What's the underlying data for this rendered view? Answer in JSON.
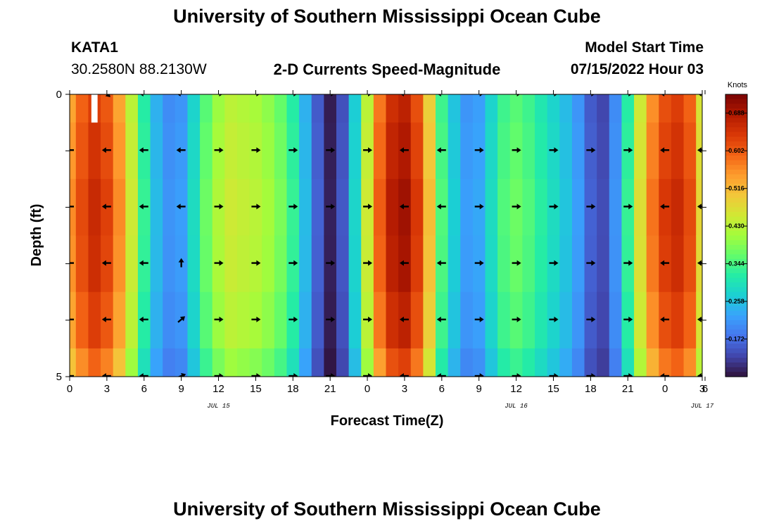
{
  "header": {
    "title": "University of Southern Mississippi Ocean Cube",
    "station": "KATA1",
    "coords": "30.2580N  88.2130W",
    "subtitle": "2-D Currents Speed-Magnitude",
    "model_start_label": "Model Start Time",
    "model_start_value": "07/15/2022 Hour 03"
  },
  "footer": {
    "title": "University of Southern Mississippi Ocean Cube"
  },
  "colors": {
    "colormap": [
      "#30123b",
      "#4145ab",
      "#4675ed",
      "#39a2fc",
      "#1bcfd4",
      "#24eca6",
      "#61fc6c",
      "#a4fc3b",
      "#d1e834",
      "#f3c63a",
      "#fe9b2d",
      "#f36315",
      "#d93806",
      "#b11901",
      "#7a0403"
    ],
    "missing": "#ffffff",
    "arrow": "#000000"
  },
  "chart_data": {
    "type": "heatmap",
    "title": "2-D Currents Speed-Magnitude",
    "xlabel": "Forecast Time(Z)",
    "ylabel": "Depth (ft)",
    "x_range": [
      0,
      51
    ],
    "x_units": "hours since 2022-07-15 00Z",
    "x_ticks": [
      0,
      3,
      6,
      9,
      12,
      15,
      18,
      21,
      24,
      27,
      30,
      33,
      36,
      39,
      42,
      45,
      48,
      51
    ],
    "x_tick_labels": [
      "0",
      "3",
      "6",
      "9",
      "12",
      "15",
      "18",
      "21",
      "0",
      "3",
      "6",
      "9",
      "12",
      "15",
      "18",
      "21",
      "0",
      "3",
      "6"
    ],
    "x_tick_hours": [
      0,
      3,
      6,
      9,
      12,
      15,
      18,
      21,
      24,
      27,
      30,
      33,
      36,
      39,
      42,
      45,
      48,
      51,
      54
    ],
    "date_labels": [
      {
        "hour": 12,
        "text": "JUL 15"
      },
      {
        "hour": 36,
        "text": "JUL 16"
      },
      {
        "hour": 51,
        "text": "JUL 17"
      }
    ],
    "y_range": [
      0,
      5
    ],
    "y_tick_labels": [
      {
        "value": 0,
        "text": "0"
      },
      {
        "value": 5,
        "text": "5"
      }
    ],
    "y_minor_ticks": [
      1,
      2,
      3,
      4
    ],
    "depth_levels": [
      0,
      1,
      2,
      3,
      4,
      5
    ],
    "colorbar": {
      "label": "Knots",
      "min": 0.086,
      "max": 0.731,
      "ticks": [
        0.688,
        0.602,
        0.516,
        0.43,
        0.344,
        0.258,
        0.172
      ]
    },
    "speed_knots_by_hour": [
      {
        "hour": 0,
        "speed": 0.56
      },
      {
        "hour": 1,
        "speed": 0.62
      },
      {
        "hour": 2,
        "speed": 0.66
      },
      {
        "hour": 3,
        "speed": 0.63
      },
      {
        "hour": 4,
        "speed": 0.56
      },
      {
        "hour": 5,
        "speed": 0.45
      },
      {
        "hour": 6,
        "speed": 0.33
      },
      {
        "hour": 7,
        "speed": 0.25
      },
      {
        "hour": 8,
        "speed": 0.21
      },
      {
        "hour": 9,
        "speed": 0.22
      },
      {
        "hour": 10,
        "speed": 0.29
      },
      {
        "hour": 11,
        "speed": 0.37
      },
      {
        "hour": 12,
        "speed": 0.42
      },
      {
        "hour": 13,
        "speed": 0.45
      },
      {
        "hour": 14,
        "speed": 0.44
      },
      {
        "hour": 15,
        "speed": 0.43
      },
      {
        "hour": 16,
        "speed": 0.41
      },
      {
        "hour": 17,
        "speed": 0.38
      },
      {
        "hour": 18,
        "speed": 0.33
      },
      {
        "hour": 19,
        "speed": 0.25
      },
      {
        "hour": 20,
        "speed": 0.16
      },
      {
        "hour": 21,
        "speed": 0.1
      },
      {
        "hour": 22,
        "speed": 0.15
      },
      {
        "hour": 23,
        "speed": 0.28
      },
      {
        "hour": 24,
        "speed": 0.45
      },
      {
        "hour": 25,
        "speed": 0.6
      },
      {
        "hour": 26,
        "speed": 0.68
      },
      {
        "hour": 27,
        "speed": 0.7
      },
      {
        "hour": 28,
        "speed": 0.64
      },
      {
        "hour": 29,
        "speed": 0.51
      },
      {
        "hour": 30,
        "speed": 0.35
      },
      {
        "hour": 31,
        "speed": 0.27
      },
      {
        "hour": 32,
        "speed": 0.22
      },
      {
        "hour": 33,
        "speed": 0.23
      },
      {
        "hour": 34,
        "speed": 0.29
      },
      {
        "hour": 35,
        "speed": 0.35
      },
      {
        "hour": 36,
        "speed": 0.37
      },
      {
        "hour": 37,
        "speed": 0.35
      },
      {
        "hour": 38,
        "speed": 0.32
      },
      {
        "hour": 39,
        "speed": 0.29
      },
      {
        "hour": 40,
        "speed": 0.26
      },
      {
        "hour": 41,
        "speed": 0.22
      },
      {
        "hour": 42,
        "speed": 0.16
      },
      {
        "hour": 43,
        "speed": 0.14
      },
      {
        "hour": 44,
        "speed": 0.21
      },
      {
        "hour": 45,
        "speed": 0.33
      },
      {
        "hour": 46,
        "speed": 0.47
      },
      {
        "hour": 47,
        "speed": 0.58
      },
      {
        "hour": 48,
        "speed": 0.64
      },
      {
        "hour": 49,
        "speed": 0.66
      },
      {
        "hour": 50,
        "speed": 0.62
      },
      {
        "hour": 51,
        "speed": 0.48
      }
    ],
    "depth_factors": [
      0.96,
      0.98,
      1.0,
      0.99,
      0.96,
      0.9
    ],
    "missing_cells": [
      {
        "hour": 2,
        "depth_from": 0,
        "depth_to": 0.5
      }
    ],
    "vectors": {
      "hours": [
        0,
        3,
        6,
        9,
        12,
        15,
        18,
        21,
        24,
        27,
        30,
        33,
        36,
        39,
        42,
        45,
        48,
        51
      ],
      "direction_by_hour": [
        "W",
        "W",
        "W",
        "W",
        "E",
        "E",
        "E",
        "E",
        "E",
        "W",
        "W",
        "E",
        "E",
        "E",
        "E",
        "E",
        "W",
        "W"
      ],
      "depths_ft": [
        0,
        1,
        2,
        3,
        4,
        5
      ],
      "overrides": [
        {
          "hour": 9,
          "depth": 3,
          "dir": "N"
        },
        {
          "hour": 9,
          "depth": 4,
          "dir": "NE"
        },
        {
          "hour": 9,
          "depth": 5,
          "dir": "ENE"
        },
        {
          "hour": 3,
          "depth": 0,
          "dir": "SE"
        }
      ]
    }
  }
}
